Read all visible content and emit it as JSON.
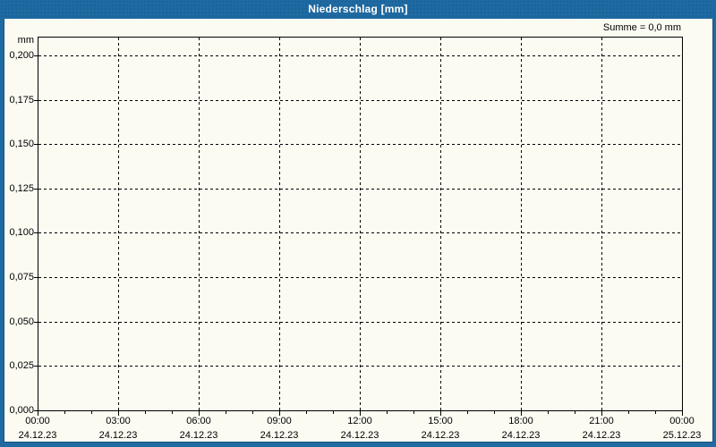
{
  "window": {
    "title": "Niederschlag [mm]"
  },
  "summary": {
    "text": "Summe = 0,0 mm"
  },
  "colors": {
    "titlebar": "#1F6AA2",
    "titlebar_dot": "#1B5F93",
    "background": "#FBFBF2",
    "grid": "#000000",
    "text": "#000000",
    "title_text": "#FFFFFF",
    "frame_edge": "#17507D"
  },
  "chart_data": {
    "type": "line",
    "title": "Niederschlag [mm]",
    "ylabel": "mm",
    "xlabel": "",
    "grid": "dashed",
    "legend": "none",
    "ylim": [
      0,
      0.21
    ],
    "y_tick_step": 0.025,
    "y_ticks": [
      {
        "value": 0.2,
        "label": "0,200"
      },
      {
        "value": 0.175,
        "label": "0,175"
      },
      {
        "value": 0.15,
        "label": "0,150"
      },
      {
        "value": 0.125,
        "label": "0,125"
      },
      {
        "value": 0.1,
        "label": "0,100"
      },
      {
        "value": 0.075,
        "label": "0,075"
      },
      {
        "value": 0.05,
        "label": "0,050"
      },
      {
        "value": 0.025,
        "label": "0,025"
      },
      {
        "value": 0.0,
        "label": "0,000"
      }
    ],
    "x_range_hours": [
      0,
      24
    ],
    "x_minor_every_hours": 1,
    "x_ticks": [
      {
        "hour": 0,
        "time": "00:00",
        "date": "24.12.23"
      },
      {
        "hour": 3,
        "time": "03:00",
        "date": "24.12.23"
      },
      {
        "hour": 6,
        "time": "06:00",
        "date": "24.12.23"
      },
      {
        "hour": 9,
        "time": "09:00",
        "date": "24.12.23"
      },
      {
        "hour": 12,
        "time": "12:00",
        "date": "24.12.23"
      },
      {
        "hour": 15,
        "time": "15:00",
        "date": "24.12.23"
      },
      {
        "hour": 18,
        "time": "18:00",
        "date": "24.12.23"
      },
      {
        "hour": 21,
        "time": "21:00",
        "date": "24.12.23"
      },
      {
        "hour": 24,
        "time": "00:00",
        "date": "25.12.23"
      }
    ],
    "series": [
      {
        "name": "Niederschlag",
        "values": []
      }
    ],
    "sum_mm": 0.0
  }
}
